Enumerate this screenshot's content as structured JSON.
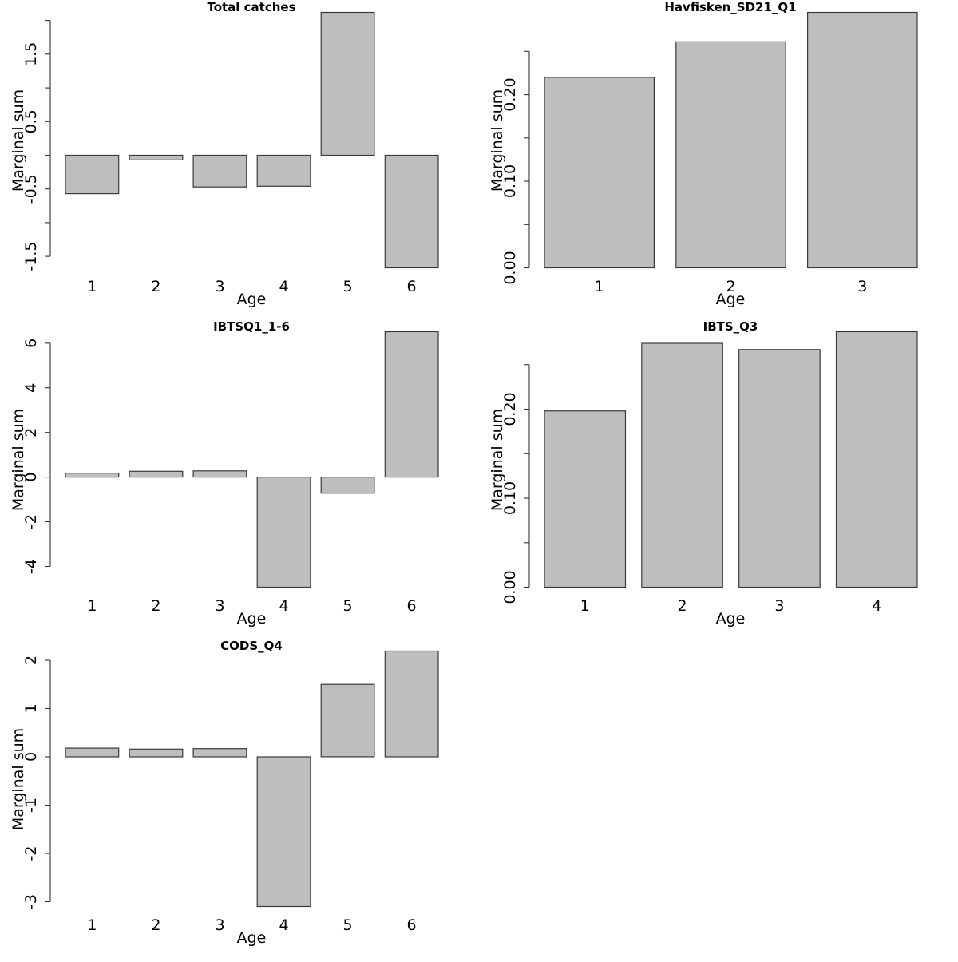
{
  "chart_data": [
    {
      "type": "bar",
      "title": "Total catches",
      "xlabel": "Age",
      "ylabel": "Marginal sum",
      "categories": [
        "1",
        "2",
        "3",
        "4",
        "5",
        "6"
      ],
      "values": [
        -0.57,
        -0.07,
        -0.47,
        -0.46,
        2.12,
        -1.67
      ],
      "yticks": [
        2.0,
        1.5,
        1.0,
        0.5,
        0.0,
        -0.5,
        -1.0,
        -1.5
      ],
      "ytick_labels": [
        "",
        "1.5",
        "",
        "0.5",
        "",
        "-0.5",
        "",
        "-1.5"
      ],
      "ylim": [
        -1.67,
        2.12
      ],
      "grid": false
    },
    {
      "type": "bar",
      "title": "Havfisken_SD21_Q1",
      "xlabel": "Age",
      "ylabel": "Marginal sum",
      "categories": [
        "1",
        "2",
        "3"
      ],
      "values": [
        0.22,
        0.261,
        0.295
      ],
      "yticks": [
        0.0,
        0.05,
        0.1,
        0.15,
        0.2,
        0.25
      ],
      "ytick_labels": [
        "0.00",
        "",
        "0.10",
        "",
        "0.20",
        ""
      ],
      "ylim": [
        0,
        0.295
      ],
      "grid": false
    },
    {
      "type": "bar",
      "title": "IBTSQ1_1-6",
      "xlabel": "Age",
      "ylabel": "Marginal sum",
      "categories": [
        "1",
        "2",
        "3",
        "4",
        "5",
        "6"
      ],
      "values": [
        0.18,
        0.26,
        0.28,
        -4.93,
        -0.72,
        6.51
      ],
      "yticks": [
        6,
        4,
        2,
        0,
        -2,
        -4
      ],
      "ytick_labels": [
        "6",
        "4",
        "2",
        "0",
        "-2",
        "-4"
      ],
      "ylim": [
        -4.93,
        6.51
      ],
      "grid": false
    },
    {
      "type": "bar",
      "title": "IBTS_Q3",
      "xlabel": "Age",
      "ylabel": "Marginal sum",
      "categories": [
        "1",
        "2",
        "3",
        "4"
      ],
      "values": [
        0.198,
        0.274,
        0.267,
        0.287
      ],
      "yticks": [
        0.0,
        0.05,
        0.1,
        0.15,
        0.2,
        0.25
      ],
      "ytick_labels": [
        "0.00",
        "",
        "0.10",
        "",
        "0.20",
        ""
      ],
      "ylim": [
        0,
        0.287
      ],
      "grid": false
    },
    {
      "type": "bar",
      "title": "CODS_Q4",
      "xlabel": "Age",
      "ylabel": "Marginal sum",
      "categories": [
        "1",
        "2",
        "3",
        "4",
        "5",
        "6"
      ],
      "values": [
        0.18,
        0.16,
        0.17,
        -3.1,
        1.5,
        2.19
      ],
      "yticks": [
        2,
        1,
        0,
        -1,
        -2,
        -3
      ],
      "ytick_labels": [
        "2",
        "1",
        "0",
        "-1",
        "-2",
        "-3"
      ],
      "ylim": [
        -3.1,
        2.19
      ],
      "grid": false
    }
  ]
}
